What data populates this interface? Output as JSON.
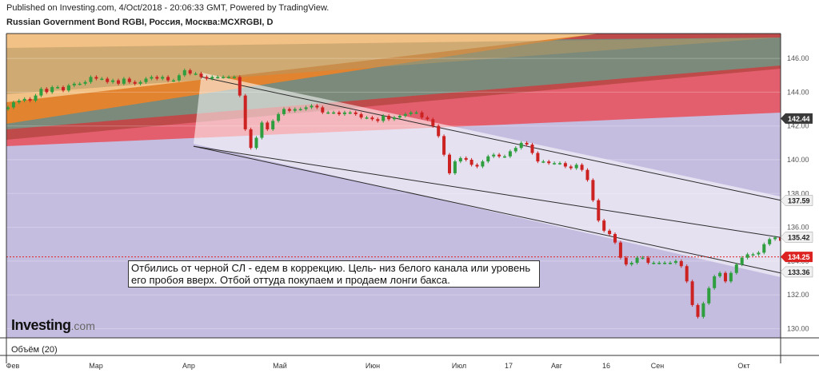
{
  "header": {
    "published": "Published on Investing.com, 4/Oct/2018 - 20:06:33 GMT, Powered by TradingView.",
    "instrument": "Russian Government Bond RGBI, Россия, Москва:MCXRGBI, D"
  },
  "annotation": "Отбились от черной СЛ - едем в коррекцию. Цель- низ белого канала или уровень его пробоя вверх. Отбой оттуда покупаем и продаем лонги бакса.",
  "logo": {
    "name": "Investing",
    "suffix": ".com"
  },
  "volume_label": "Объём (20)",
  "colors": {
    "up": "#2e9e3e",
    "down": "#cc2222",
    "last_price": "#dd2222",
    "lavender": "#c5bde0",
    "red_fan": "#e45f6e",
    "dark_fan": "#7b8a7b",
    "orange_fan": "#f2c185"
  },
  "chart_data": {
    "type": "candlestick",
    "ylim": [
      129.0,
      147.5
    ],
    "y_ticks": [
      130,
      132,
      134,
      136,
      138,
      140,
      142,
      144,
      146
    ],
    "x_labels": [
      "Фев",
      "Мар",
      "Апр",
      "Май",
      "Июн",
      "Июл",
      "17",
      "Авг",
      "16",
      "Сен",
      "Окт"
    ],
    "price_tags": [
      {
        "value": 142.44,
        "style": "dark"
      },
      {
        "value": 137.59,
        "style": "light"
      },
      {
        "value": 135.42,
        "style": "light"
      },
      {
        "value": 134.25,
        "style": "last"
      },
      {
        "value": 133.36,
        "style": "light"
      }
    ],
    "last_price": 134.25,
    "trendlines": [
      {
        "name": "white-channel-upper",
        "x": [
          "2018-04-05",
          "2018-10-11"
        ],
        "y": [
          144.9,
          137.6
        ]
      },
      {
        "name": "white-channel-lower",
        "x": [
          "2018-03-30",
          "2018-10-11"
        ],
        "y": [
          140.8,
          133.3
        ]
      },
      {
        "name": "black-trendline",
        "x": [
          "2018-03-30",
          "2018-10-11"
        ],
        "y": [
          140.8,
          135.4
        ]
      }
    ],
    "closes": [
      143.1,
      143.4,
      143.5,
      143.6,
      143.5,
      143.8,
      144.2,
      144.0,
      144.3,
      144.3,
      144.1,
      144.4,
      144.5,
      144.5,
      144.6,
      144.9,
      144.8,
      144.8,
      144.6,
      144.7,
      144.5,
      144.8,
      144.6,
      144.5,
      144.6,
      144.8,
      144.9,
      144.8,
      144.9,
      144.7,
      144.7,
      145.0,
      145.3,
      145.1,
      145.1,
      144.9,
      144.8,
      144.9,
      144.9,
      144.9,
      144.9,
      144.9,
      143.8,
      141.8,
      140.7,
      141.3,
      142.2,
      141.8,
      142.3,
      142.7,
      143.0,
      142.9,
      143.0,
      143.0,
      143.1,
      143.2,
      143.1,
      142.8,
      142.8,
      142.8,
      142.7,
      142.8,
      142.8,
      142.7,
      142.5,
      142.5,
      142.4,
      142.3,
      142.6,
      142.4,
      142.5,
      142.6,
      142.7,
      142.8,
      142.8,
      142.5,
      142.4,
      142.0,
      141.4,
      140.3,
      139.2,
      139.9,
      140.1,
      140.0,
      139.7,
      139.6,
      139.9,
      140.2,
      140.3,
      140.2,
      140.2,
      140.5,
      140.7,
      141.0,
      140.9,
      140.4,
      139.9,
      139.9,
      139.8,
      139.8,
      139.8,
      139.6,
      139.5,
      139.7,
      139.4,
      138.8,
      137.6,
      136.4,
      135.8,
      135.6,
      135.1,
      134.2,
      133.8,
      133.9,
      134.2,
      134.2,
      133.9,
      133.9,
      133.9,
      133.9,
      133.9,
      134.0,
      133.7,
      132.8,
      131.4,
      130.7,
      131.5,
      132.4,
      133.1,
      133.3,
      132.8,
      133.3,
      133.8,
      134.2,
      134.4,
      134.4,
      134.5,
      135.0,
      135.3,
      135.4,
      135.2,
      134.2
    ]
  }
}
